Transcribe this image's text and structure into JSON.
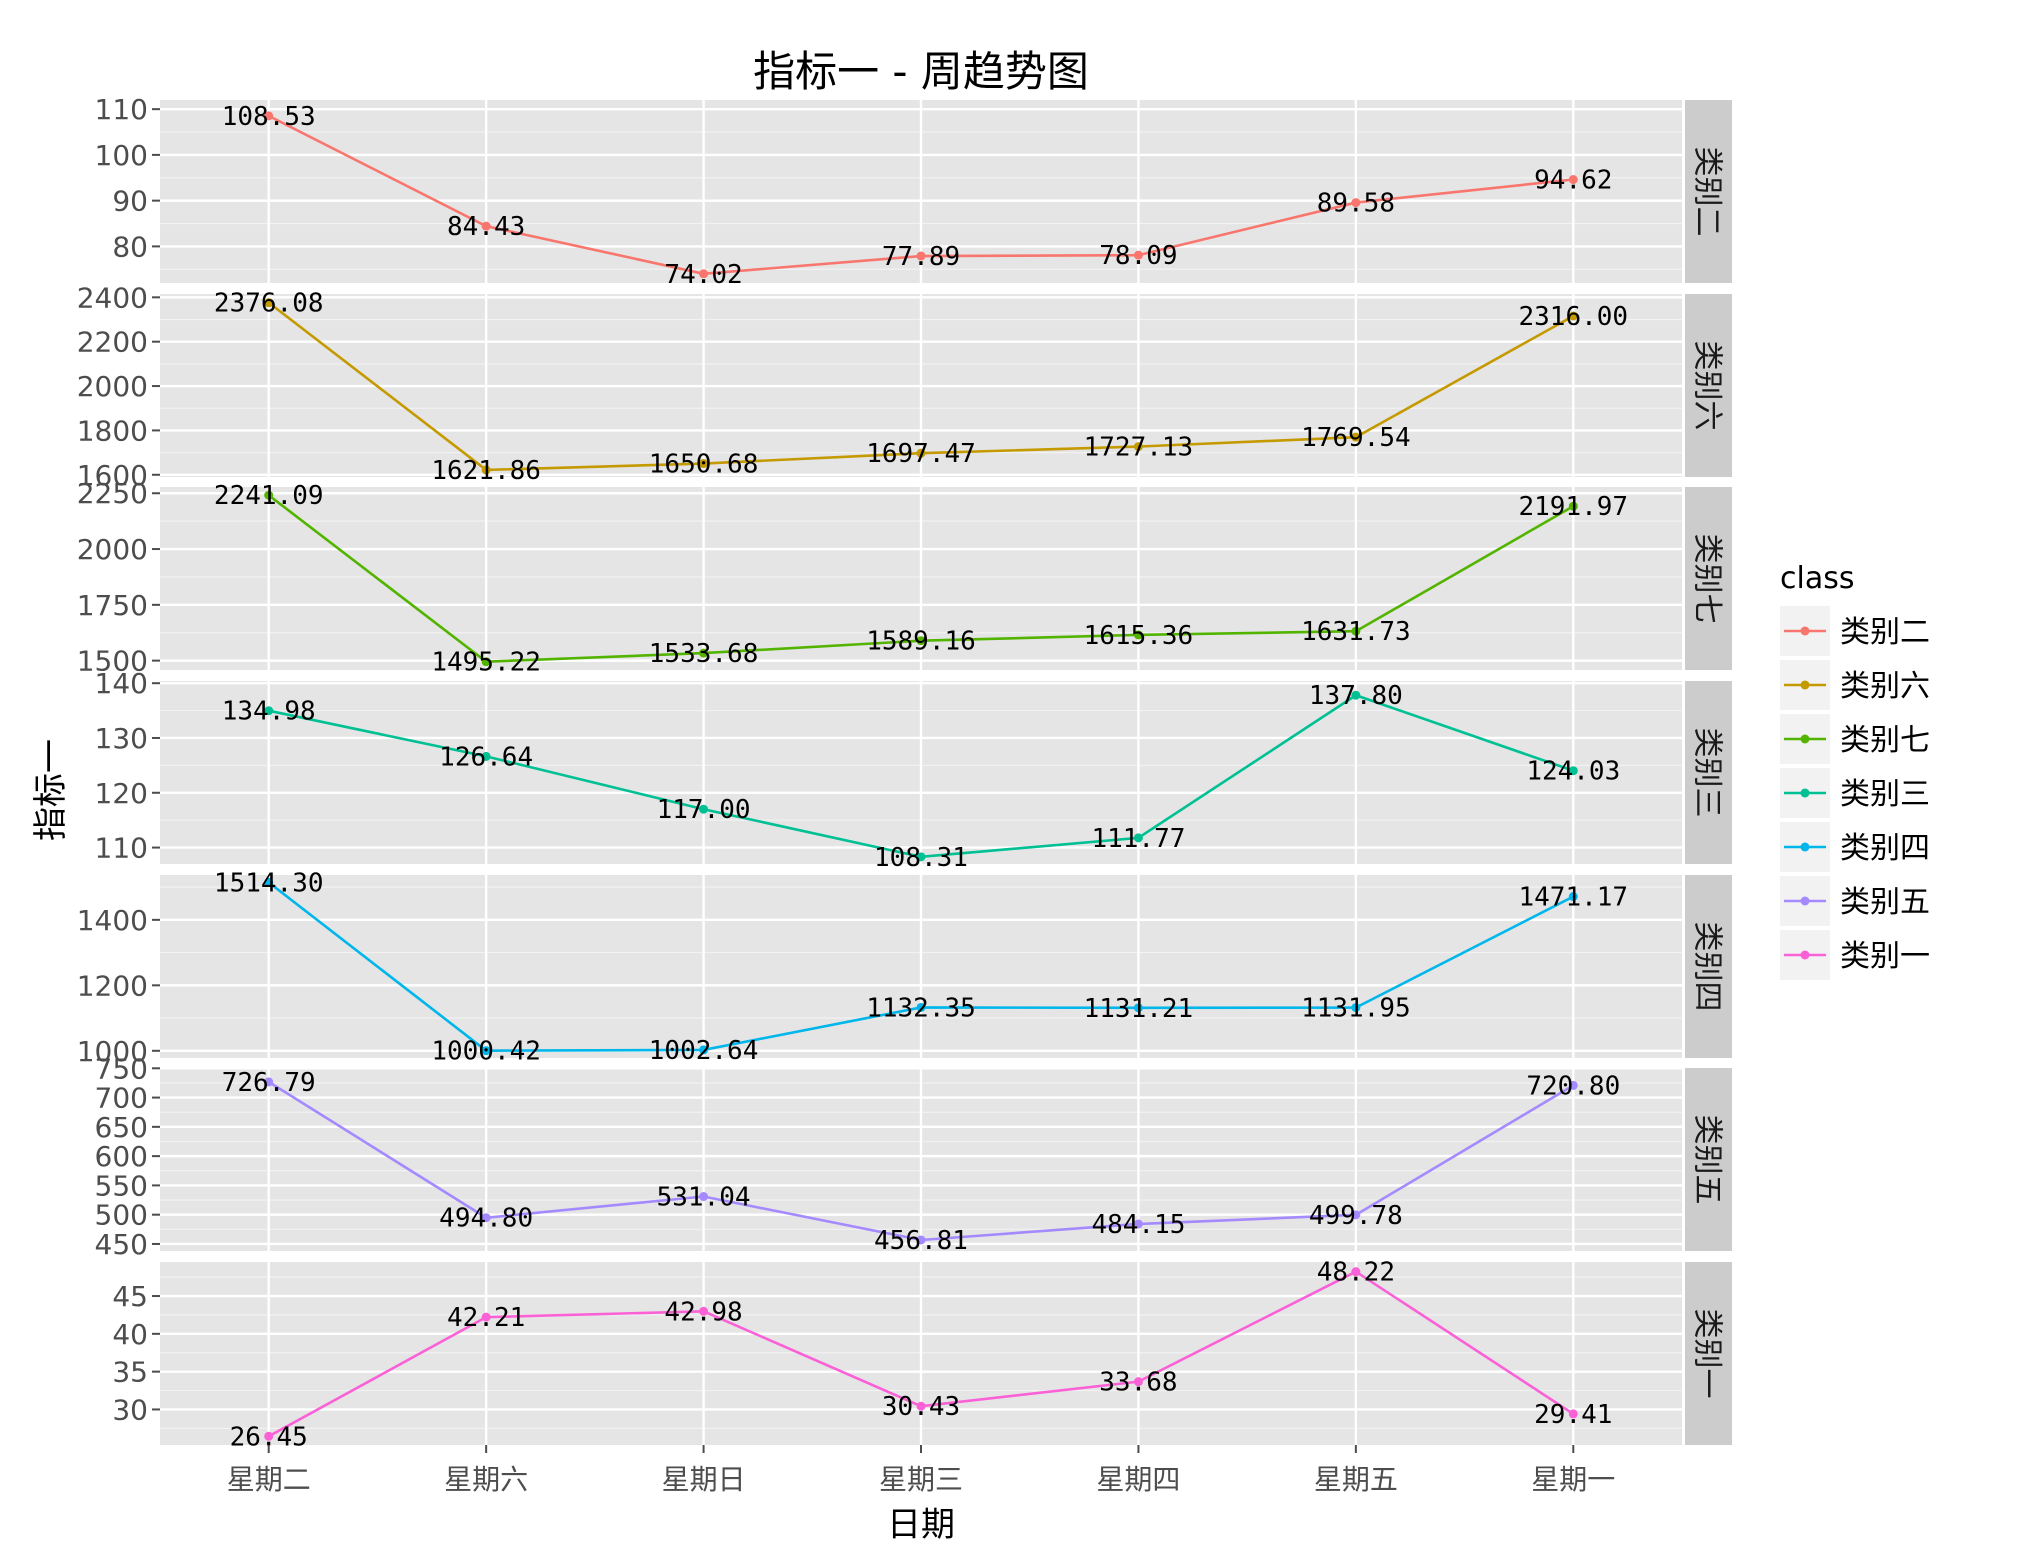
{
  "chart_data": {
    "type": "line",
    "title": "指标一 - 周趋势图",
    "xlabel": "日期",
    "ylabel": "指标一",
    "categories": [
      "星期二",
      "星期六",
      "星期日",
      "星期三",
      "星期四",
      "星期五",
      "星期一"
    ],
    "legend": {
      "title": "class",
      "position": "right"
    },
    "grid": true,
    "facets": [
      {
        "name": "类别二",
        "color": "#F8766D",
        "values": [
          108.53,
          84.43,
          74.02,
          77.89,
          78.09,
          89.58,
          94.62
        ],
        "labels": [
          "108.53",
          "84.43",
          "74.02",
          "77.89",
          "78.09",
          "89.58",
          "94.62"
        ],
        "ylim": [
          72,
          112
        ],
        "yticks": [
          80,
          90,
          100,
          110
        ]
      },
      {
        "name": "类别六",
        "color": "#C49A00",
        "values": [
          2376.08,
          1621.86,
          1650.68,
          1697.47,
          1727.13,
          1769.54,
          2316.0
        ],
        "labels": [
          "2376.08",
          "1621.86",
          "1650.68",
          "1697.47",
          "1727.13",
          "1769.54",
          "2316.00"
        ],
        "ylim": [
          1590,
          2415
        ],
        "yticks": [
          1600,
          1800,
          2000,
          2200,
          2400
        ]
      },
      {
        "name": "类别七",
        "color": "#53B400",
        "values": [
          2241.09,
          1495.22,
          1533.68,
          1589.16,
          1615.36,
          1631.73,
          2191.97
        ],
        "labels": [
          "2241.09",
          "1495.22",
          "1533.68",
          "1589.16",
          "1615.36",
          "1631.73",
          "2191.97"
        ],
        "ylim": [
          1458,
          2278
        ],
        "yticks": [
          1500,
          1750,
          2000,
          2250
        ]
      },
      {
        "name": "类别三",
        "color": "#00C094",
        "values": [
          134.98,
          126.64,
          117.0,
          108.31,
          111.77,
          137.8,
          124.03
        ],
        "labels": [
          "134.98",
          "126.64",
          "117.00",
          "108.31",
          "111.77",
          "137.80",
          "124.03"
        ],
        "ylim": [
          107,
          140.4
        ],
        "yticks": [
          110,
          120,
          130,
          140
        ]
      },
      {
        "name": "类别四",
        "color": "#00B6EB",
        "values": [
          1514.3,
          1000.42,
          1002.64,
          1132.35,
          1131.21,
          1131.95,
          1471.17
        ],
        "labels": [
          "1514.30",
          "1000.42",
          "1002.64",
          "1132.35",
          "1131.21",
          "1131.95",
          "1471.17"
        ],
        "ylim": [
          978,
          1537
        ],
        "yticks": [
          1000,
          1200,
          1400
        ]
      },
      {
        "name": "类别五",
        "color": "#A58AFF",
        "values": [
          726.79,
          494.8,
          531.04,
          456.81,
          484.15,
          499.78,
          720.8
        ],
        "labels": [
          "726.79",
          "494.80",
          "531.04",
          "456.81",
          "484.15",
          "499.78",
          "720.80"
        ],
        "ylim": [
          438,
          750.5
        ],
        "yticks": [
          450,
          500,
          550,
          600,
          650,
          700,
          750
        ]
      },
      {
        "name": "类别一",
        "color": "#FB61D7",
        "values": [
          26.45,
          42.21,
          42.98,
          30.43,
          33.68,
          48.22,
          29.41
        ],
        "labels": [
          "26.45",
          "42.21",
          "42.98",
          "30.43",
          "33.68",
          "48.22",
          "29.41"
        ],
        "ylim": [
          25.3,
          49.5
        ],
        "yticks": [
          30,
          35,
          40,
          45
        ]
      }
    ]
  }
}
